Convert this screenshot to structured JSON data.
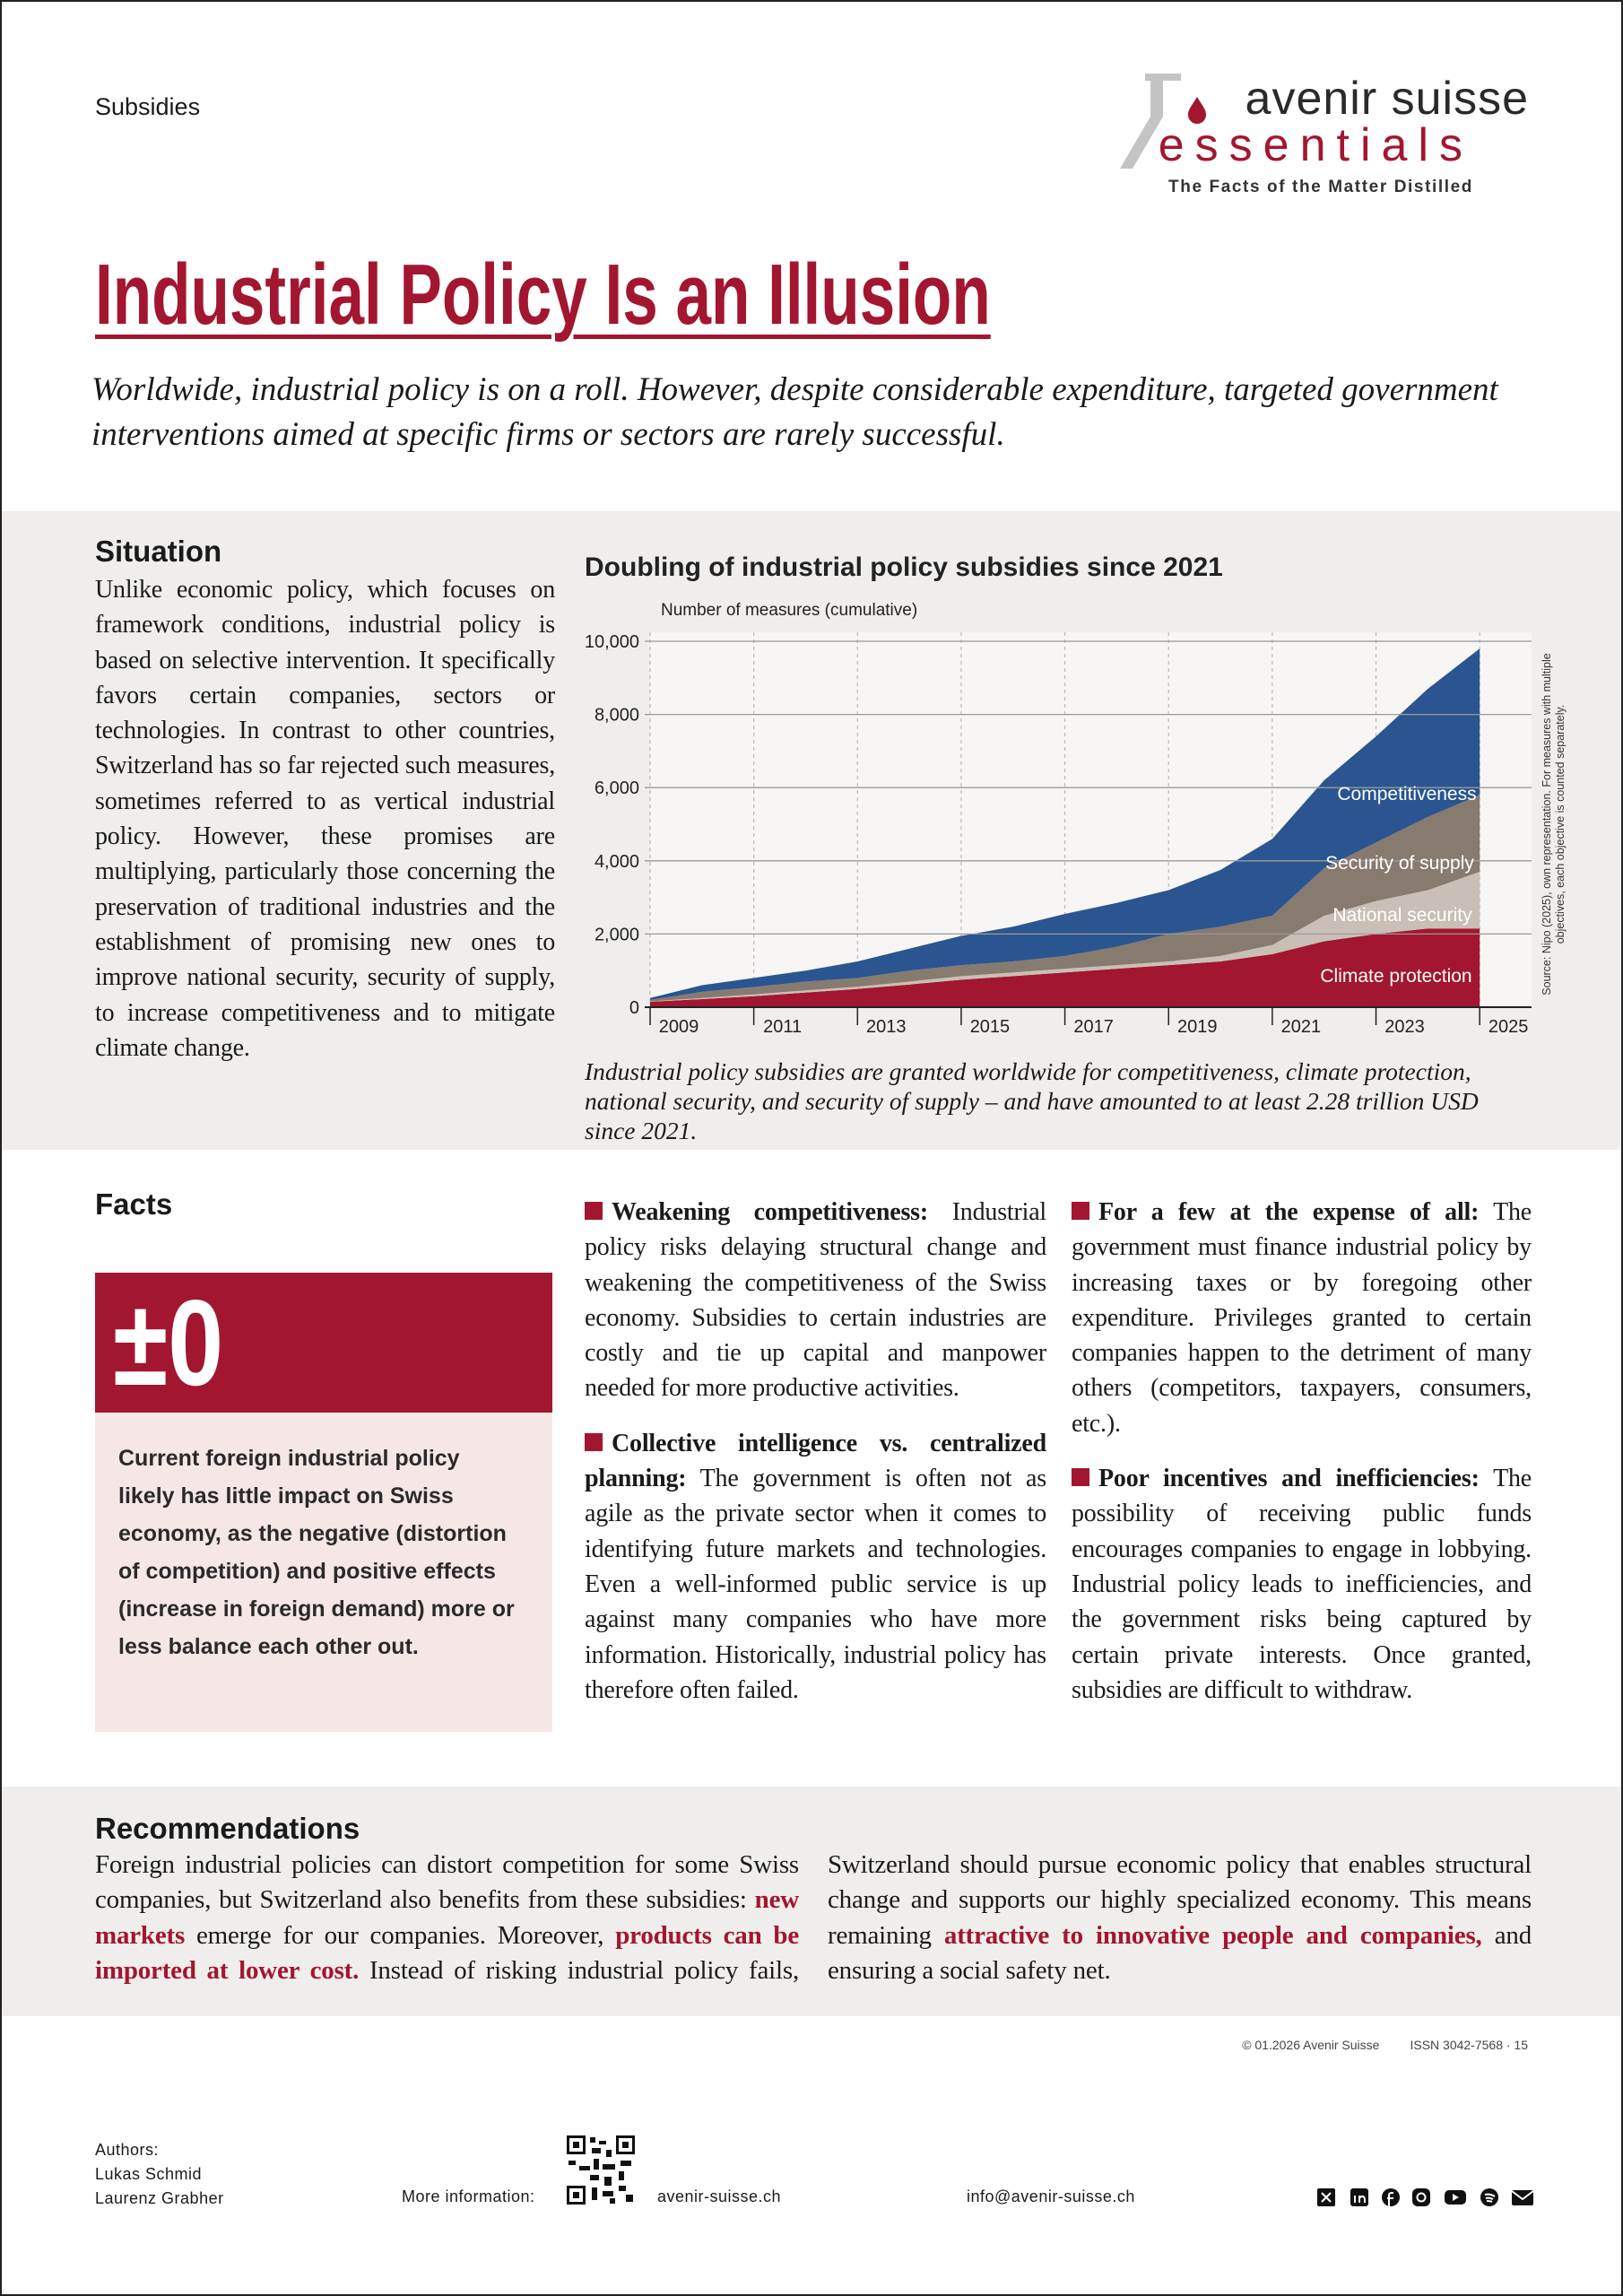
{
  "header": {
    "section": "Subsidies",
    "brand": "avenir suisse",
    "product": "essentials",
    "tagline": "The Facts of the Matter Distilled"
  },
  "title": "Industrial Policy Is an Illusion",
  "lead": "Worldwide, industrial policy is on a roll. However, despite considerable expenditure, targeted government interventions aimed at specific firms or sectors are rarely successful.",
  "situation": {
    "heading": "Situation",
    "text": "Unlike economic policy, which focuses on framework conditions, industrial policy is based on selective intervention. It specifically favors certain companies, sectors or technologies. In contrast to other countries, Switzerland has so far rejected such measures, sometimes referred to as vertical industrial policy. However, these promises are multiplying, particularly those concerning the preservation of traditional industries and the establishment of promising new ones to improve national security, security of supply, to increase competitiveness and to mitigate climate change."
  },
  "chart_data": {
    "type": "stacked_area",
    "title": "Doubling of industrial policy subsidies since 2021",
    "y_label": "Number of measures (cumulative)",
    "caption": "Industrial policy subsidies are granted worldwide for competitiveness, climate protection, national security, and security of supply – and have amounted to at least 2.28 trillion USD since 2021.",
    "source": [
      "Source: Nipo (2025), own representation. For measures with multiple",
      "objectives, each objective is counted separately."
    ],
    "x": [
      2009,
      2010,
      2011,
      2012,
      2013,
      2014,
      2015,
      2016,
      2017,
      2018,
      2019,
      2020,
      2021,
      2022,
      2023,
      2024,
      2025
    ],
    "series": [
      {
        "name": "Climate protection",
        "color": "#a3162f",
        "values": [
          150,
          220,
          300,
          400,
          500,
          620,
          750,
          850,
          950,
          1050,
          1150,
          1250,
          1450,
          1800,
          2000,
          2150,
          2150
        ]
      },
      {
        "name": "National security",
        "color": "#c9bfb6",
        "values": [
          10,
          30,
          50,
          60,
          60,
          80,
          100,
          100,
          100,
          100,
          100,
          150,
          250,
          700,
          900,
          1050,
          1550
        ]
      },
      {
        "name": "Security of supply",
        "color": "#877a6e",
        "values": [
          40,
          170,
          200,
          240,
          240,
          300,
          300,
          300,
          350,
          500,
          750,
          800,
          800,
          1300,
          1600,
          2000,
          2100
        ]
      },
      {
        "name": "Competitiveness",
        "color": "#2a5590",
        "values": [
          50,
          180,
          250,
          300,
          450,
          600,
          800,
          950,
          1150,
          1200,
          1200,
          1550,
          2100,
          2400,
          2900,
          3500,
          4000
        ]
      }
    ],
    "xlim": [
      2009,
      2026
    ],
    "xticks": [
      2009,
      2011,
      2013,
      2015,
      2017,
      2019,
      2021,
      2023,
      2025
    ],
    "ylim": [
      0,
      10000
    ],
    "yticks": [
      0,
      {
        "value": 2000,
        "label": "2,000"
      },
      {
        "value": 4000,
        "label": "4,000"
      },
      {
        "value": 6000,
        "label": "6,000"
      },
      {
        "value": 8000,
        "label": "8,000"
      },
      {
        "value": 10000,
        "label": "10,000"
      }
    ],
    "grid": true
  },
  "facts": {
    "heading": "Facts",
    "figure": "±0",
    "figure_text": "Current foreign industrial policy likely has little impact on Swiss economy, as the negative (distortion of competition) and positive effects (increase in foreign demand) more or less balance each other out.",
    "items": [
      {
        "heading": "Weakening competitiveness:",
        "text": "Industrial policy risks delaying structural change and weakening the competitiveness of the Swiss economy. Subsidies to certain industries are costly and tie up capital and manpower needed for more productive activities."
      },
      {
        "heading": "Collective intelligence vs. centralized planning:",
        "text": "The government is often not as agile as the private sector when it comes to identifying future markets and technologies. Even a well-informed public service is up against many companies who have more information. Historically, industrial policy has therefore often failed."
      },
      {
        "heading": "For a few at the expense of all:",
        "text": "The government must finance industrial policy by increasing taxes or by foregoing other expenditure. Privileges granted to certain companies happen to the detriment of many others (competitors, taxpayers, consumers, etc.)."
      },
      {
        "heading": "Poor incentives and inefficiencies:",
        "text": "The possibility of receiving public funds encourages companies to engage in lobbying. Industrial policy leads to inefficiencies, and the government risks being captured by certain private interests. Once granted, subsidies are difficult to withdraw."
      }
    ]
  },
  "recommendations": {
    "heading": "Recommendations",
    "parts": [
      "Foreign industrial policies can distort competition for some Swiss companies, but Switzerland also benefits from these subsidies: ",
      "new markets",
      " emerge for our companies. Moreover, ",
      "products can be imported at lower cost.",
      " Instead of risking industrial policy fails, Switzerland should pursue economic policy that enables structural change and supports our highly specialized economy. This means remaining ",
      "attractive to innovative people and companies,",
      " and ensuring a social safety net."
    ]
  },
  "footer": {
    "copyright": "© 01.2026 Avenir Suisse",
    "issn": "ISSN 3042-7568 · 15",
    "authors_label": "Authors:",
    "authors": [
      "Lukas Schmid",
      "Laurenz Grabher"
    ],
    "more_info": "More information:",
    "website": "avenir-suisse.ch",
    "email": "info@avenir-suisse.ch"
  }
}
